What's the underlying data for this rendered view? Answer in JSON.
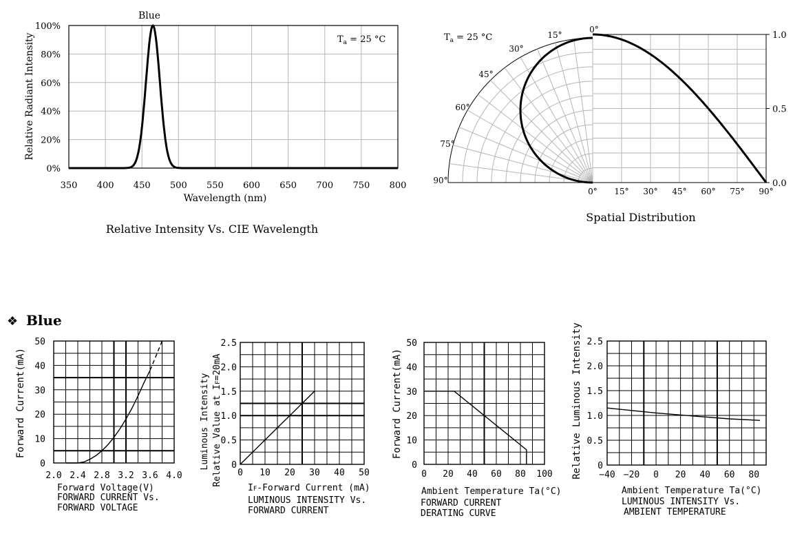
{
  "section": {
    "marker": "❖",
    "title": "Blue"
  },
  "charts": {
    "spectrum": {
      "type": "line",
      "peak_label": "Blue",
      "condition": "T",
      "condition_sub": "a",
      "condition_rest": " = 25 °C",
      "ylabel": "Relative Radiant Intensity",
      "xlabel": "Wavelength (nm)",
      "caption": "Relative Intensity Vs. CIE Wavelength",
      "xticks": [
        "350",
        "400",
        "450",
        "500",
        "550",
        "600",
        "650",
        "700",
        "750",
        "800"
      ],
      "yticks": [
        "0%",
        "20%",
        "40%",
        "60%",
        "80%",
        "100%"
      ],
      "xlim": [
        350,
        800
      ],
      "ylim": [
        0,
        100
      ],
      "x": [
        350,
        430,
        440,
        445,
        450,
        455,
        460,
        465,
        470,
        475,
        480,
        485,
        490,
        500,
        520,
        800
      ],
      "y": [
        0,
        0,
        1.5,
        5,
        14,
        38,
        76,
        100,
        88,
        58,
        28,
        10,
        2,
        0,
        0,
        0
      ]
    },
    "spatial": {
      "type": "line",
      "condition": "T",
      "condition_sub": "a",
      "condition_rest": " = 25 °C",
      "caption": "Spatial Distribution",
      "polar_labels": [
        "0°",
        "15°",
        "30°",
        "45°",
        "60°",
        "75°",
        "90°"
      ],
      "xticks": [
        "0°",
        "15°",
        "30°",
        "45°",
        "60°",
        "75°",
        "90°"
      ],
      "yticks": [
        "0.0",
        "0.5",
        "1.0"
      ],
      "angle": [
        0,
        15,
        30,
        45,
        60,
        75,
        90
      ],
      "intensity": [
        1.0,
        0.97,
        0.87,
        0.71,
        0.5,
        0.26,
        0.0
      ]
    },
    "iv": {
      "type": "line",
      "ylabel": "Forward Current(mA)",
      "xlabel": "Forward Voltage(V)",
      "caption_lines": [
        "FORWARD CURRENT Vs.",
        "FORWARD VOLTAGE"
      ],
      "xticks": [
        "2.0",
        "2.4",
        "2.8",
        "3.2",
        "3.6",
        "4.0"
      ],
      "yticks": [
        "0",
        "10",
        "20",
        "30",
        "40",
        "50"
      ],
      "xlim": [
        2.0,
        4.0
      ],
      "ylim": [
        0,
        50
      ],
      "x": [
        2.4,
        2.5,
        2.6,
        2.7,
        2.8,
        2.9,
        3.0,
        3.1,
        3.2,
        3.3,
        3.4,
        3.5,
        3.6
      ],
      "y": [
        0,
        0.4,
        1.5,
        3,
        5,
        7.5,
        10.5,
        14,
        18,
        22.5,
        27.5,
        33,
        38
      ],
      "dashed_x": [
        3.6,
        3.7,
        3.8
      ],
      "dashed_y": [
        38,
        44,
        50
      ]
    },
    "li": {
      "type": "line",
      "ylabel_lines": [
        "Luminous Intensity",
        "Relative Value at I",
        "F",
        "=20mA"
      ],
      "xlabel_pre": "I",
      "xlabel_sub": "F",
      "xlabel_rest": "-Forward Current (mA)",
      "caption_lines": [
        "LUMINOUS INTENSITY Vs.",
        "FORWARD CURRENT"
      ],
      "xticks": [
        "0",
        "10",
        "20",
        "30",
        "40",
        "50"
      ],
      "yticks": [
        "0",
        "0.5",
        "1.0",
        "1.5",
        "2.0",
        "2.5"
      ],
      "xlim": [
        0,
        50
      ],
      "ylim": [
        0,
        2.5
      ],
      "x": [
        0,
        30
      ],
      "y": [
        0,
        1.5
      ]
    },
    "derating": {
      "type": "line",
      "ylabel": "Forward Current(mA)",
      "xlabel": "Ambient Temperature Ta(°C)",
      "caption_lines": [
        "FORWARD CURRENT",
        "DERATING CURVE"
      ],
      "xticks": [
        "0",
        "20",
        "40",
        "60",
        "80",
        "100"
      ],
      "yticks": [
        "0",
        "10",
        "20",
        "30",
        "40",
        "50"
      ],
      "xlim": [
        0,
        100
      ],
      "ylim": [
        0,
        50
      ],
      "x": [
        0,
        25,
        85,
        85
      ],
      "y": [
        30,
        30,
        6,
        0
      ]
    },
    "lt": {
      "type": "line",
      "ylabel": "Relative Luminous Intensity",
      "xlabel": "Ambient Temperature Ta(°C)",
      "caption_lines": [
        "LUMINOUS INTENSITY Vs.",
        "AMBIENT TEMPERATURE"
      ],
      "xticks": [
        "−40",
        "−20",
        "0",
        "20",
        "40",
        "60",
        "80"
      ],
      "yticks": [
        "0",
        "0.5",
        "1.0",
        "1.5",
        "2.0",
        "2.5"
      ],
      "xlim": [
        -40,
        90
      ],
      "ylim": [
        0,
        2.5
      ],
      "x": [
        -40,
        -20,
        0,
        20,
        40,
        60,
        85
      ],
      "y": [
        1.15,
        1.1,
        1.05,
        1.01,
        0.97,
        0.93,
        0.9
      ]
    }
  },
  "chart_data": [
    {
      "type": "line",
      "xlabel": "Wavelength (nm)",
      "ylabel": "Relative Radiant Intensity",
      "xlim": [
        350,
        800
      ],
      "ylim": [
        0,
        100
      ],
      "x": [
        350,
        430,
        440,
        445,
        450,
        455,
        460,
        465,
        470,
        475,
        480,
        485,
        490,
        500,
        520,
        800
      ],
      "series": [
        {
          "name": "Blue",
          "values": [
            0,
            0,
            1.5,
            5,
            14,
            38,
            76,
            100,
            88,
            58,
            28,
            10,
            2,
            0,
            0,
            0
          ]
        }
      ]
    },
    {
      "type": "line",
      "x": [
        0,
        15,
        30,
        45,
        60,
        75,
        90
      ],
      "series": [
        {
          "values": [
            1.0,
            0.97,
            0.87,
            0.71,
            0.5,
            0.26,
            0.0
          ]
        }
      ],
      "ylim": [
        0,
        1.0
      ]
    },
    {
      "type": "line",
      "xlabel": "Forward Voltage(V)",
      "ylabel": "Forward Current(mA)",
      "xlim": [
        2.0,
        4.0
      ],
      "ylim": [
        0,
        50
      ],
      "x": [
        2.4,
        2.8,
        3.0,
        3.2,
        3.4,
        3.6,
        3.8
      ],
      "series": [
        {
          "values": [
            0,
            5,
            10.5,
            18,
            27.5,
            38,
            50
          ]
        }
      ]
    },
    {
      "type": "line",
      "xlim": [
        0,
        50
      ],
      "ylim": [
        0,
        2.5
      ],
      "x": [
        0,
        30
      ],
      "series": [
        {
          "values": [
            0,
            1.5
          ]
        }
      ]
    },
    {
      "type": "line",
      "xlabel": "Ambient Temperature Ta(°C)",
      "ylabel": "Forward Current(mA)",
      "xlim": [
        0,
        100
      ],
      "ylim": [
        0,
        50
      ],
      "x": [
        0,
        25,
        85,
        85
      ],
      "series": [
        {
          "values": [
            30,
            30,
            6,
            0
          ]
        }
      ]
    },
    {
      "type": "line",
      "xlabel": "Ambient Temperature Ta(°C)",
      "ylabel": "Relative Luminous Intensity",
      "xlim": [
        -40,
        90
      ],
      "ylim": [
        0,
        2.5
      ],
      "x": [
        -40,
        -20,
        0,
        20,
        40,
        60,
        85
      ],
      "series": [
        {
          "values": [
            1.15,
            1.1,
            1.05,
            1.01,
            0.97,
            0.93,
            0.9
          ]
        }
      ]
    }
  ]
}
